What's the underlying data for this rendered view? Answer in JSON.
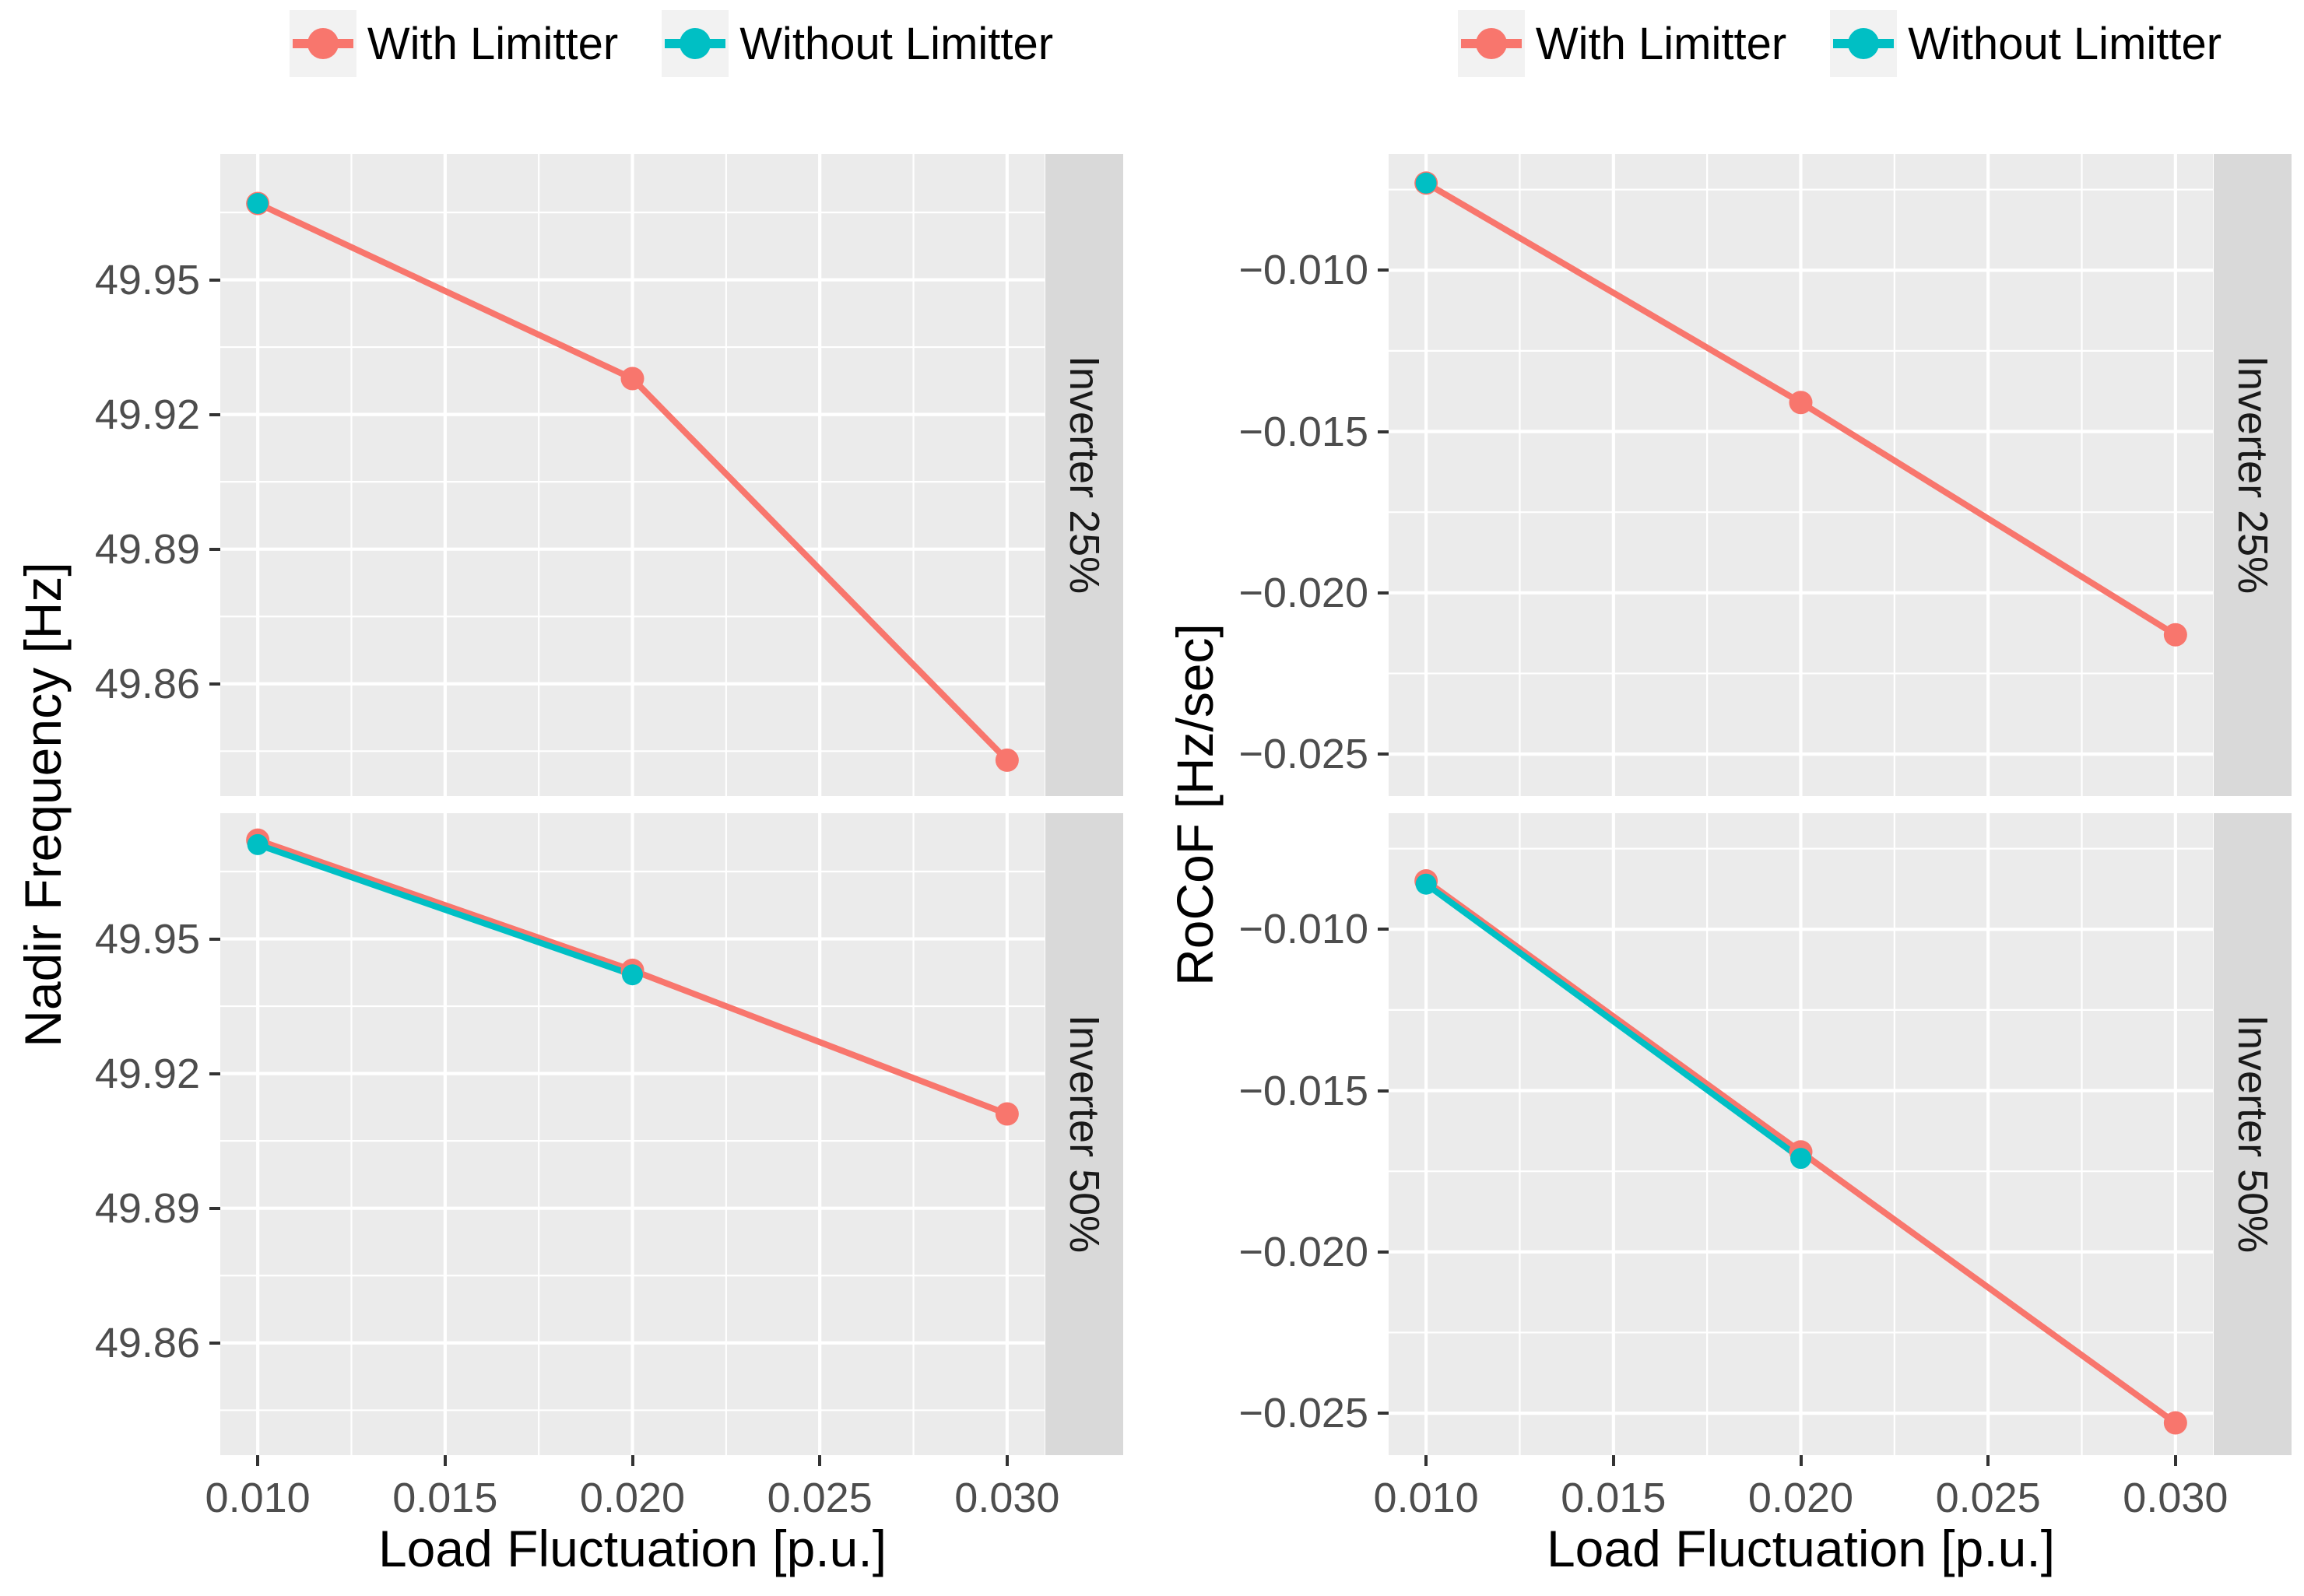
{
  "legend": {
    "items": [
      {
        "label": "With Limitter",
        "color": "#F8766D"
      },
      {
        "label": "Without Limitter",
        "color": "#00BFC4"
      }
    ]
  },
  "colors": {
    "with_limitter": "#F8766D",
    "without_limitter": "#00BFC4",
    "panel_background": "#EBEBEB",
    "gridline": "#FFFFFF",
    "strip_background": "#D9D9D9",
    "legend_key_background": "#F2F2F2",
    "tick_text": "#4D4D4D"
  },
  "chart_data": [
    {
      "type": "line",
      "title": "",
      "xlabel": "Load Fluctuation [p.u.]",
      "ylabel": "Nadir Frequency [Hz]",
      "legend_position": "top",
      "grid": true,
      "xlim": [
        0.009,
        0.031
      ],
      "ylim": [
        49.835,
        49.978
      ],
      "x_ticks": {
        "values": [
          0.01,
          0.015,
          0.02,
          0.025,
          0.03
        ],
        "labels": [
          "0.010",
          "0.015",
          "0.020",
          "0.025",
          "0.030"
        ]
      },
      "y_ticks": {
        "values": [
          49.95,
          49.92,
          49.89,
          49.86
        ],
        "labels": [
          "49.95",
          "49.92",
          "49.89",
          "49.86"
        ]
      },
      "x_minor": [
        0.0125,
        0.0175,
        0.0225,
        0.0275
      ],
      "y_minor": [
        49.965,
        49.935,
        49.905,
        49.875,
        49.845
      ],
      "facets": [
        {
          "label": "Inverter 25%",
          "series": [
            {
              "name": "With Limitter",
              "color": "#F8766D",
              "points": [
                [
                  0.01,
                  49.967
                ],
                [
                  0.02,
                  49.928
                ],
                [
                  0.03,
                  49.843
                ]
              ]
            },
            {
              "name": "Without Limitter",
              "color": "#00BFC4",
              "points": [
                [
                  0.01,
                  49.967
                ]
              ]
            }
          ]
        },
        {
          "label": "Inverter 50%",
          "series": [
            {
              "name": "With Limitter",
              "color": "#F8766D",
              "points": [
                [
                  0.01,
                  49.972
                ],
                [
                  0.02,
                  49.943
                ],
                [
                  0.03,
                  49.911
                ]
              ]
            },
            {
              "name": "Without Limitter",
              "color": "#00BFC4",
              "points": [
                [
                  0.01,
                  49.971
                ],
                [
                  0.02,
                  49.942
                ]
              ]
            }
          ]
        }
      ]
    },
    {
      "type": "line",
      "title": "",
      "xlabel": "Load Fluctuation [p.u.]",
      "ylabel": "RoCoF [Hz/sec]",
      "legend_position": "top",
      "grid": true,
      "xlim": [
        0.009,
        0.031
      ],
      "ylim": [
        -0.0263,
        -0.0064
      ],
      "x_ticks": {
        "values": [
          0.01,
          0.015,
          0.02,
          0.025,
          0.03
        ],
        "labels": [
          "0.010",
          "0.015",
          "0.020",
          "0.025",
          "0.030"
        ]
      },
      "y_ticks": {
        "values": [
          -0.01,
          -0.015,
          -0.02,
          -0.025
        ],
        "labels": [
          "−0.010",
          "−0.015",
          "−0.020",
          "−0.025"
        ]
      },
      "x_minor": [
        0.0125,
        0.0175,
        0.0225,
        0.0275
      ],
      "y_minor": [
        -0.0075,
        -0.0125,
        -0.0175,
        -0.0225
      ],
      "facets": [
        {
          "label": "Inverter 25%",
          "series": [
            {
              "name": "With Limitter",
              "color": "#F8766D",
              "points": [
                [
                  0.01,
                  -0.0073
                ],
                [
                  0.02,
                  -0.0141
                ],
                [
                  0.03,
                  -0.0213
                ]
              ]
            },
            {
              "name": "Without Limitter",
              "color": "#00BFC4",
              "points": [
                [
                  0.01,
                  -0.0073
                ]
              ]
            }
          ]
        },
        {
          "label": "Inverter 50%",
          "series": [
            {
              "name": "With Limitter",
              "color": "#F8766D",
              "points": [
                [
                  0.01,
                  -0.0085
                ],
                [
                  0.02,
                  -0.0169
                ],
                [
                  0.03,
                  -0.0253
                ]
              ]
            },
            {
              "name": "Without Limitter",
              "color": "#00BFC4",
              "points": [
                [
                  0.01,
                  -0.0086
                ],
                [
                  0.02,
                  -0.0171
                ]
              ]
            }
          ]
        }
      ]
    }
  ]
}
